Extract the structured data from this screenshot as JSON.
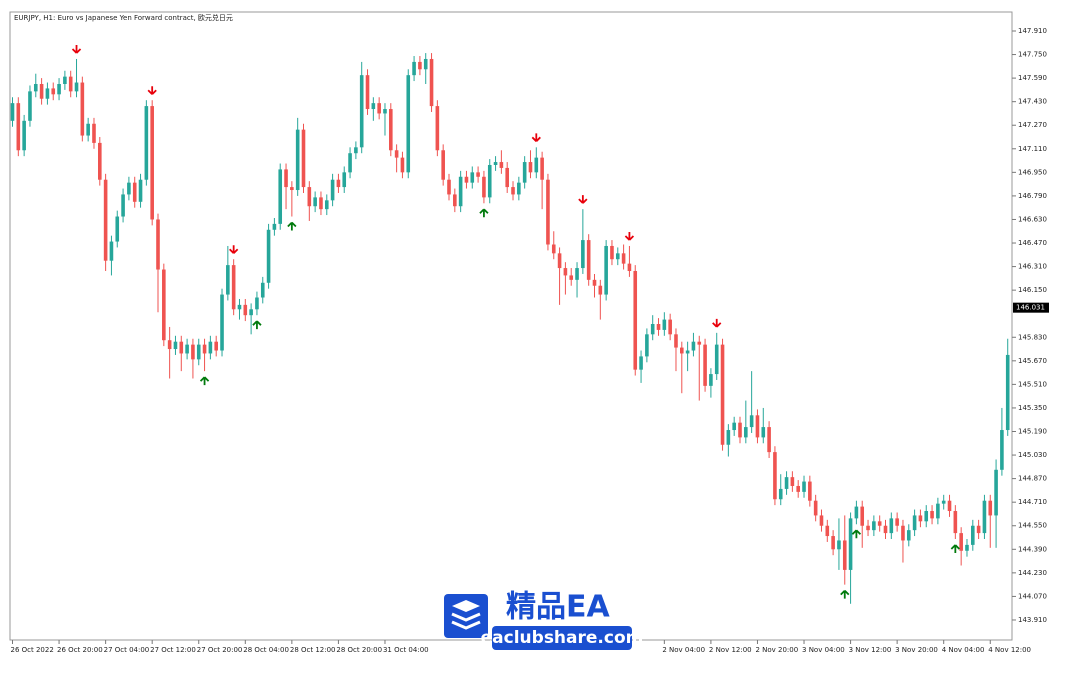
{
  "chart_data": {
    "type": "candlestick",
    "title": "EURJPY, H1:  Euro vs Japanese Yen Forward contract, 欧元兑日元",
    "up_color": "#26a69a",
    "down_color": "#ef5350",
    "sell_color": "#e8000b",
    "buy_color": "#007a0c",
    "ylim": [
      143.774,
      148.039
    ],
    "yticks": [
      {
        "value": 143.91,
        "label": "143.910"
      },
      {
        "value": 144.07,
        "label": "144.070"
      },
      {
        "value": 144.23,
        "label": "144.230"
      },
      {
        "value": 144.39,
        "label": "144.390"
      },
      {
        "value": 144.55,
        "label": "144.550"
      },
      {
        "value": 144.71,
        "label": "144.710"
      },
      {
        "value": 144.87,
        "label": "144.870"
      },
      {
        "value": 145.03,
        "label": "145.030"
      },
      {
        "value": 145.19,
        "label": "145.190"
      },
      {
        "value": 145.35,
        "label": "145.350"
      },
      {
        "value": 145.51,
        "label": "145.510"
      },
      {
        "value": 145.67,
        "label": "145.670"
      },
      {
        "value": 145.83,
        "label": "145.830"
      },
      {
        "value": 146.15,
        "label": "146.150"
      },
      {
        "value": 146.31,
        "label": "146.310"
      },
      {
        "value": 146.47,
        "label": "146.470"
      },
      {
        "value": 146.63,
        "label": "146.630"
      },
      {
        "value": 146.79,
        "label": "146.790"
      },
      {
        "value": 146.95,
        "label": "146.950"
      },
      {
        "value": 147.11,
        "label": "147.110"
      },
      {
        "value": 147.27,
        "label": "147.270"
      },
      {
        "value": 147.43,
        "label": "147.430"
      },
      {
        "value": 147.59,
        "label": "147.590"
      },
      {
        "value": 147.75,
        "label": "147.750"
      },
      {
        "value": 147.91,
        "label": "147.910"
      }
    ],
    "current_price": 146.031,
    "xticks": [
      {
        "value": 0,
        "label": "26 Oct 2022"
      },
      {
        "value": 8,
        "label": "26 Oct 20:00"
      },
      {
        "value": 16,
        "label": "27 Oct 04:00"
      },
      {
        "value": 24,
        "label": "27 Oct 12:00"
      },
      {
        "value": 32,
        "label": "27 Oct 20:00"
      },
      {
        "value": 40,
        "label": "28 Oct 04:00"
      },
      {
        "value": 48,
        "label": "28 Oct 12:00"
      },
      {
        "value": 56,
        "label": "28 Oct 20:00"
      },
      {
        "value": 64,
        "label": "31 Oct 04:00"
      },
      {
        "value": 112,
        "label": "2 Nov 04:00"
      },
      {
        "value": 120,
        "label": "2 Nov 12:00"
      },
      {
        "value": 128,
        "label": "2 Nov 20:00"
      },
      {
        "value": 136,
        "label": "3 Nov 04:00"
      },
      {
        "value": 144,
        "label": "3 Nov 12:00"
      },
      {
        "value": 152,
        "label": "3 Nov 20:00"
      },
      {
        "value": 160,
        "label": "4 Nov 04:00"
      },
      {
        "value": 168,
        "label": "4 Nov 12:00"
      }
    ],
    "sell_signals": [
      11,
      24,
      38,
      90,
      98,
      106,
      121
    ],
    "buy_signals": [
      33,
      42,
      48,
      81,
      143,
      145,
      162
    ],
    "ohlc": [
      [
        147.3,
        147.46,
        147.26,
        147.42
      ],
      [
        147.42,
        147.46,
        147.06,
        147.1
      ],
      [
        147.1,
        147.34,
        147.06,
        147.3
      ],
      [
        147.3,
        147.54,
        147.26,
        147.5
      ],
      [
        147.5,
        147.62,
        147.46,
        147.55
      ],
      [
        147.55,
        147.59,
        147.41,
        147.45
      ],
      [
        147.45,
        147.56,
        147.41,
        147.52
      ],
      [
        147.52,
        147.56,
        147.44,
        147.48
      ],
      [
        147.48,
        147.59,
        147.44,
        147.55
      ],
      [
        147.55,
        147.64,
        147.51,
        147.6
      ],
      [
        147.6,
        147.64,
        147.46,
        147.5
      ],
      [
        147.5,
        147.72,
        147.46,
        147.56
      ],
      [
        147.56,
        147.6,
        147.16,
        147.2
      ],
      [
        147.2,
        147.32,
        147.16,
        147.28
      ],
      [
        147.28,
        147.32,
        147.11,
        147.15
      ],
      [
        147.15,
        147.19,
        146.86,
        146.9
      ],
      [
        146.9,
        146.94,
        146.28,
        146.35
      ],
      [
        146.35,
        146.52,
        146.25,
        146.48
      ],
      [
        146.48,
        146.69,
        146.44,
        146.65
      ],
      [
        146.65,
        146.84,
        146.61,
        146.8
      ],
      [
        146.8,
        146.92,
        146.76,
        146.88
      ],
      [
        146.88,
        146.92,
        146.71,
        146.75
      ],
      [
        146.75,
        146.94,
        146.71,
        146.9
      ],
      [
        146.9,
        147.44,
        146.86,
        147.4
      ],
      [
        147.4,
        147.44,
        146.59,
        146.63
      ],
      [
        146.63,
        146.67,
        146.0,
        146.29
      ],
      [
        146.29,
        146.33,
        145.77,
        145.81
      ],
      [
        145.81,
        145.9,
        145.55,
        145.75
      ],
      [
        145.75,
        145.84,
        145.71,
        145.8
      ],
      [
        145.8,
        145.84,
        145.6,
        145.72
      ],
      [
        145.72,
        145.82,
        145.68,
        145.78
      ],
      [
        145.78,
        145.82,
        145.55,
        145.68
      ],
      [
        145.68,
        145.82,
        145.64,
        145.78
      ],
      [
        145.78,
        145.82,
        145.6,
        145.72
      ],
      [
        145.72,
        145.84,
        145.68,
        145.8
      ],
      [
        145.8,
        145.84,
        145.7,
        145.74
      ],
      [
        145.74,
        146.16,
        145.7,
        146.12
      ],
      [
        146.12,
        146.45,
        146.08,
        146.32
      ],
      [
        146.32,
        146.36,
        145.98,
        146.02
      ],
      [
        146.02,
        146.09,
        145.95,
        146.05
      ],
      [
        146.05,
        146.09,
        145.94,
        145.98
      ],
      [
        145.98,
        146.06,
        145.85,
        146.02
      ],
      [
        146.02,
        146.14,
        145.98,
        146.1
      ],
      [
        146.1,
        146.24,
        146.06,
        146.2
      ],
      [
        146.2,
        146.6,
        146.16,
        146.56
      ],
      [
        146.56,
        146.64,
        146.52,
        146.6
      ],
      [
        146.6,
        147.01,
        146.56,
        146.97
      ],
      [
        146.97,
        147.01,
        146.7,
        146.85
      ],
      [
        146.85,
        146.89,
        146.65,
        146.83
      ],
      [
        146.83,
        147.32,
        146.79,
        147.24
      ],
      [
        147.24,
        147.28,
        146.81,
        146.85
      ],
      [
        146.85,
        146.89,
        146.62,
        146.72
      ],
      [
        146.72,
        146.82,
        146.68,
        146.78
      ],
      [
        146.78,
        146.82,
        146.66,
        146.7
      ],
      [
        146.7,
        146.8,
        146.66,
        146.76
      ],
      [
        146.76,
        146.94,
        146.72,
        146.9
      ],
      [
        146.9,
        146.94,
        146.81,
        146.85
      ],
      [
        146.85,
        146.99,
        146.81,
        146.95
      ],
      [
        146.95,
        147.12,
        146.91,
        147.08
      ],
      [
        147.08,
        147.16,
        147.04,
        147.12
      ],
      [
        147.12,
        147.7,
        147.08,
        147.61
      ],
      [
        147.61,
        147.65,
        147.34,
        147.38
      ],
      [
        147.38,
        147.46,
        147.3,
        147.42
      ],
      [
        147.42,
        147.46,
        147.31,
        147.35
      ],
      [
        147.35,
        147.42,
        147.2,
        147.38
      ],
      [
        147.38,
        147.42,
        147.06,
        147.1
      ],
      [
        147.1,
        147.14,
        146.95,
        147.05
      ],
      [
        147.05,
        147.09,
        146.91,
        146.95
      ],
      [
        146.95,
        147.65,
        146.91,
        147.61
      ],
      [
        147.61,
        147.74,
        147.57,
        147.7
      ],
      [
        147.7,
        147.74,
        147.61,
        147.65
      ],
      [
        147.65,
        147.76,
        147.55,
        147.72
      ],
      [
        147.72,
        147.76,
        147.36,
        147.4
      ],
      [
        147.4,
        147.44,
        147.06,
        147.1
      ],
      [
        147.1,
        147.14,
        146.86,
        146.9
      ],
      [
        146.9,
        146.94,
        146.76,
        146.8
      ],
      [
        146.8,
        146.84,
        146.68,
        146.72
      ],
      [
        146.72,
        146.96,
        146.68,
        146.92
      ],
      [
        146.92,
        146.96,
        146.84,
        146.88
      ],
      [
        146.88,
        146.99,
        146.84,
        146.95
      ],
      [
        146.95,
        146.99,
        146.88,
        146.92
      ],
      [
        146.92,
        146.96,
        146.74,
        146.78
      ],
      [
        146.78,
        147.04,
        146.74,
        147.0
      ],
      [
        147.0,
        147.06,
        146.96,
        147.02
      ],
      [
        147.02,
        147.1,
        146.94,
        146.98
      ],
      [
        146.98,
        147.02,
        146.81,
        146.85
      ],
      [
        146.85,
        146.89,
        146.76,
        146.8
      ],
      [
        146.8,
        146.92,
        146.76,
        146.88
      ],
      [
        146.88,
        147.06,
        146.84,
        147.02
      ],
      [
        147.02,
        147.1,
        146.91,
        146.95
      ],
      [
        146.95,
        147.12,
        146.91,
        147.05
      ],
      [
        147.05,
        147.09,
        146.7,
        146.9
      ],
      [
        146.9,
        146.94,
        146.42,
        146.46
      ],
      [
        146.46,
        146.55,
        146.36,
        146.4
      ],
      [
        146.4,
        146.44,
        146.05,
        146.3
      ],
      [
        146.3,
        146.34,
        146.12,
        146.25
      ],
      [
        146.25,
        146.3,
        146.18,
        146.22
      ],
      [
        146.22,
        146.34,
        146.1,
        146.3
      ],
      [
        146.3,
        146.7,
        146.26,
        146.49
      ],
      [
        146.49,
        146.53,
        146.18,
        146.22
      ],
      [
        146.22,
        146.26,
        146.1,
        146.18
      ],
      [
        146.18,
        146.22,
        145.95,
        146.12
      ],
      [
        146.12,
        146.49,
        146.08,
        146.45
      ],
      [
        146.45,
        146.49,
        146.32,
        146.36
      ],
      [
        146.36,
        146.44,
        146.32,
        146.4
      ],
      [
        146.4,
        146.46,
        146.29,
        146.33
      ],
      [
        146.33,
        146.45,
        146.24,
        146.28
      ],
      [
        146.28,
        146.32,
        145.57,
        145.61
      ],
      [
        145.61,
        145.74,
        145.52,
        145.7
      ],
      [
        145.7,
        145.89,
        145.66,
        145.85
      ],
      [
        145.85,
        145.98,
        145.81,
        145.92
      ],
      [
        145.92,
        145.96,
        145.84,
        145.88
      ],
      [
        145.88,
        146.0,
        145.84,
        145.95
      ],
      [
        145.95,
        145.99,
        145.81,
        145.85
      ],
      [
        145.85,
        145.89,
        145.6,
        145.76
      ],
      [
        145.76,
        145.8,
        145.45,
        145.72
      ],
      [
        145.72,
        145.8,
        145.6,
        145.74
      ],
      [
        145.74,
        145.86,
        145.7,
        145.8
      ],
      [
        145.8,
        145.84,
        145.4,
        145.78
      ],
      [
        145.78,
        145.82,
        145.46,
        145.5
      ],
      [
        145.5,
        145.62,
        145.42,
        145.58
      ],
      [
        145.58,
        145.86,
        145.54,
        145.78
      ],
      [
        145.78,
        145.82,
        145.06,
        145.1
      ],
      [
        145.1,
        145.24,
        145.02,
        145.2
      ],
      [
        145.2,
        145.29,
        145.16,
        145.25
      ],
      [
        145.25,
        145.29,
        145.11,
        145.15
      ],
      [
        145.15,
        145.4,
        145.11,
        145.22
      ],
      [
        145.22,
        145.6,
        145.18,
        145.3
      ],
      [
        145.3,
        145.34,
        145.11,
        145.15
      ],
      [
        145.15,
        145.35,
        145.11,
        145.22
      ],
      [
        145.22,
        145.26,
        145.01,
        145.05
      ],
      [
        145.05,
        145.09,
        144.69,
        144.73
      ],
      [
        144.73,
        144.9,
        144.69,
        144.8
      ],
      [
        144.8,
        144.92,
        144.76,
        144.88
      ],
      [
        144.88,
        144.92,
        144.78,
        144.82
      ],
      [
        144.82,
        144.86,
        144.74,
        144.78
      ],
      [
        144.78,
        144.89,
        144.74,
        144.85
      ],
      [
        144.85,
        144.89,
        144.68,
        144.72
      ],
      [
        144.72,
        144.76,
        144.58,
        144.62
      ],
      [
        144.62,
        144.66,
        144.51,
        144.55
      ],
      [
        144.55,
        144.59,
        144.44,
        144.48
      ],
      [
        144.48,
        144.52,
        144.35,
        144.39
      ],
      [
        144.39,
        144.6,
        144.25,
        144.45
      ],
      [
        144.45,
        144.62,
        144.15,
        144.25
      ],
      [
        144.25,
        144.64,
        144.02,
        144.6
      ],
      [
        144.6,
        144.72,
        144.56,
        144.68
      ],
      [
        144.68,
        144.72,
        144.4,
        144.55
      ],
      [
        144.55,
        144.59,
        144.48,
        144.52
      ],
      [
        144.52,
        144.62,
        144.48,
        144.58
      ],
      [
        144.58,
        144.62,
        144.51,
        144.55
      ],
      [
        144.55,
        144.59,
        144.46,
        144.5
      ],
      [
        144.5,
        144.64,
        144.46,
        144.6
      ],
      [
        144.6,
        144.64,
        144.51,
        144.55
      ],
      [
        144.55,
        144.59,
        144.3,
        144.45
      ],
      [
        144.45,
        144.56,
        144.41,
        144.52
      ],
      [
        144.52,
        144.66,
        144.48,
        144.62
      ],
      [
        144.62,
        144.66,
        144.54,
        144.58
      ],
      [
        144.58,
        144.69,
        144.54,
        144.65
      ],
      [
        144.65,
        144.69,
        144.56,
        144.6
      ],
      [
        144.6,
        144.74,
        144.56,
        144.7
      ],
      [
        144.7,
        144.76,
        144.66,
        144.72
      ],
      [
        144.72,
        144.76,
        144.61,
        144.65
      ],
      [
        144.65,
        144.69,
        144.46,
        144.5
      ],
      [
        144.5,
        144.54,
        144.28,
        144.38
      ],
      [
        144.38,
        144.46,
        144.34,
        144.42
      ],
      [
        144.42,
        144.59,
        144.38,
        144.55
      ],
      [
        144.55,
        144.59,
        144.46,
        144.5
      ],
      [
        144.5,
        144.76,
        144.46,
        144.72
      ],
      [
        144.72,
        144.76,
        144.4,
        144.62
      ],
      [
        144.62,
        145.0,
        144.4,
        144.93
      ],
      [
        144.93,
        145.35,
        144.89,
        145.2
      ],
      [
        145.2,
        145.82,
        145.16,
        145.71
      ]
    ]
  },
  "watermark": {
    "title": "精品EA",
    "url": "eaclubshare.com"
  }
}
